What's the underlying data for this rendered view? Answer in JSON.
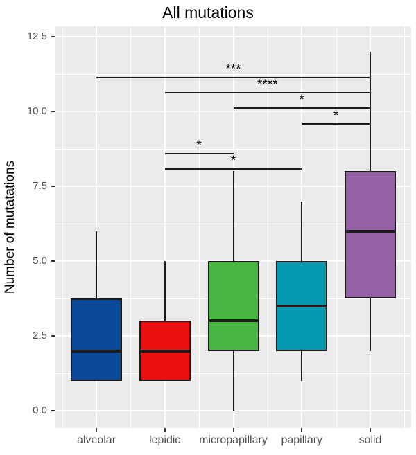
{
  "title": "All mutations",
  "y_axis": {
    "label": "Number of mutatations",
    "tick_labels": [
      "0.0",
      "2.5",
      "5.0",
      "7.5",
      "10.0",
      "12.5"
    ]
  },
  "chart_data": {
    "type": "boxplot",
    "title": "All mutations",
    "xlabel": "",
    "ylabel": "Number of mutatations",
    "ylim": [
      0,
      12.5
    ],
    "yticks": [
      0,
      2.5,
      5,
      7.5,
      10,
      12.5
    ],
    "grid": "grey panel with white major and minor gridlines (ggplot style)",
    "legend_position": "none",
    "categories": [
      "alveolar",
      "lepidic",
      "micropapillary",
      "papillary",
      "solid"
    ],
    "series": [
      {
        "category": "alveolar",
        "color": "#0b4a99",
        "min": 1,
        "q1": 1,
        "median": 2,
        "q3": 3.75,
        "max": 6
      },
      {
        "category": "lepidic",
        "color": "#ec0f0f",
        "min": 1,
        "q1": 1,
        "median": 2,
        "q3": 3,
        "max": 5
      },
      {
        "category": "micropapillary",
        "color": "#48b640",
        "min": 0,
        "q1": 2,
        "median": 3,
        "q3": 5,
        "max": 8
      },
      {
        "category": "papillary",
        "color": "#0499b0",
        "min": 1,
        "q1": 2,
        "median": 3.5,
        "q3": 5,
        "max": 7
      },
      {
        "category": "solid",
        "color": "#9660a6",
        "min": 2,
        "q1": 3.75,
        "median": 6,
        "q3": 8,
        "max": 12
      }
    ],
    "significance": [
      {
        "group1": "alveolar",
        "group2": "solid",
        "label": "***",
        "y_value": 11.15
      },
      {
        "group1": "lepidic",
        "group2": "solid",
        "label": "****",
        "y_value": 10.65
      },
      {
        "group1": "micropapillary",
        "group2": "solid",
        "label": "*",
        "y_value": 10.15
      },
      {
        "group1": "papillary",
        "group2": "solid",
        "label": "*",
        "y_value": 9.6
      },
      {
        "group1": "lepidic",
        "group2": "micropapillary",
        "label": "*",
        "y_value": 8.6
      },
      {
        "group1": "lepidic",
        "group2": "papillary",
        "label": "*",
        "y_value": 8.1
      }
    ]
  },
  "colors": {
    "panel_background": "#ebebeb",
    "gridline": "#ffffff",
    "box_outline": "#1c1c1c",
    "axis_text": "#4d4d4d",
    "title_text": "#000000"
  }
}
